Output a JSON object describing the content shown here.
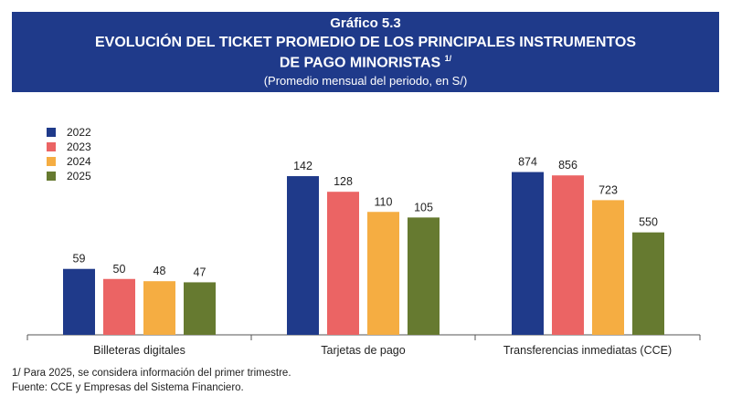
{
  "header": {
    "number": "Gráfico 5.3",
    "title_line1": "EVOLUCIÓN DEL TICKET PROMEDIO DE LOS PRINCIPALES INSTRUMENTOS",
    "title_line2": "DE PAGO MINORISTAS",
    "title_note": "1/",
    "subtitle": "(Promedio mensual del periodo, en S/)"
  },
  "colors": {
    "header_bg": "#1f3a8a",
    "2022": "#1f3a8a",
    "2023": "#eb6464",
    "2024": "#f5ad42",
    "2025": "#667a30"
  },
  "chart_data": {
    "type": "bar",
    "title": "EVOLUCIÓN DEL TICKET PROMEDIO DE LOS PRINCIPALES INSTRUMENTOS DE PAGO MINORISTAS",
    "subtitle": "(Promedio mensual del periodo, en S/)",
    "legend_position": "top-left",
    "grid": false,
    "groups": [
      {
        "category": "Billeteras digitales",
        "ylim": [
          0,
          200
        ],
        "values": [
          59,
          50,
          48,
          47
        ]
      },
      {
        "category": "Tarjetas de pago",
        "ylim": [
          0,
          200
        ],
        "values": [
          142,
          128,
          110,
          105
        ]
      },
      {
        "category": "Transferencias inmediatas (CCE)",
        "ylim": [
          0,
          1200
        ],
        "values": [
          874,
          856,
          723,
          550
        ]
      }
    ],
    "series": [
      {
        "name": "2022",
        "color": "#1f3a8a"
      },
      {
        "name": "2023",
        "color": "#eb6464"
      },
      {
        "name": "2024",
        "color": "#f5ad42"
      },
      {
        "name": "2025",
        "color": "#667a30"
      }
    ]
  },
  "footer": {
    "note": "1/ Para 2025, se considera información del primer trimestre.",
    "source": "Fuente: CCE y Empresas del Sistema Financiero."
  }
}
